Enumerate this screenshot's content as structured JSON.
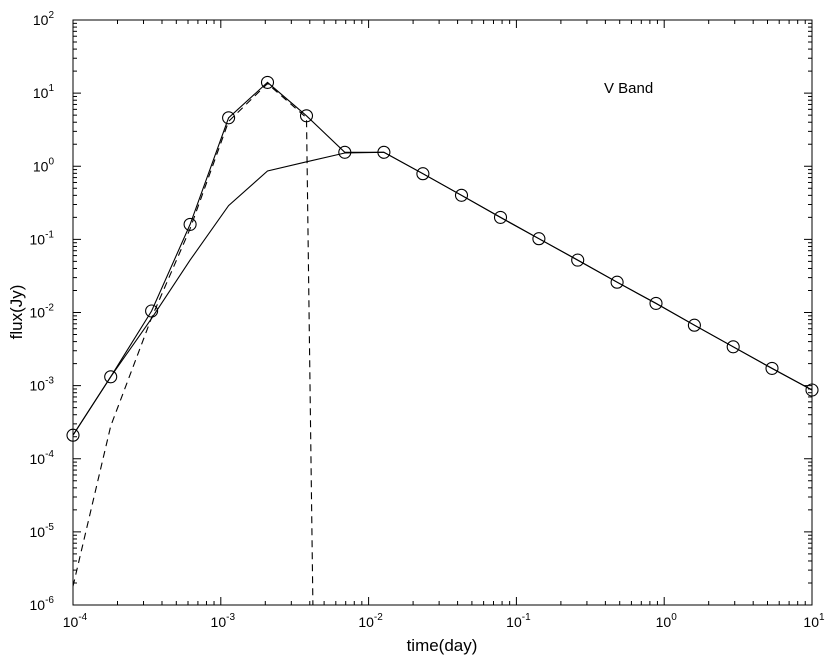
{
  "chart_data": {
    "type": "line",
    "title": "",
    "xlabel": "time(day)",
    "ylabel": "flux(Jy)",
    "xscale": "log",
    "yscale": "log",
    "xlim": [
      0.0001,
      10
    ],
    "ylim": [
      1e-06,
      100
    ],
    "grid": false,
    "annotation": "V  Band",
    "x_ticks": [
      {
        "base": "10",
        "exp": "-4"
      },
      {
        "base": "10",
        "exp": "-3"
      },
      {
        "base": "10",
        "exp": "-2"
      },
      {
        "base": "10",
        "exp": "-1"
      },
      {
        "base": "10",
        "exp": "0"
      },
      {
        "base": "10",
        "exp": "1"
      }
    ],
    "y_ticks": [
      {
        "base": "10",
        "exp": "-6"
      },
      {
        "base": "10",
        "exp": "-5"
      },
      {
        "base": "10",
        "exp": "-4"
      },
      {
        "base": "10",
        "exp": "-3"
      },
      {
        "base": "10",
        "exp": "-2"
      },
      {
        "base": "10",
        "exp": "-1"
      },
      {
        "base": "10",
        "exp": "0"
      },
      {
        "base": "10",
        "exp": "1"
      },
      {
        "base": "10",
        "exp": "2"
      }
    ],
    "series": [
      {
        "style": "solid-circles",
        "x": [
          0.0001,
          0.00018,
          0.00034,
          0.00062,
          0.00113,
          0.00207,
          0.0038,
          0.0069,
          0.0127,
          0.0233,
          0.0425,
          0.078,
          0.142,
          0.26,
          0.48,
          0.88,
          1.6,
          2.93,
          5.36,
          10
        ],
        "y": [
          0.00021,
          0.00132,
          0.0105,
          0.16,
          4.6,
          14,
          4.9,
          1.55,
          1.55,
          0.79,
          0.4,
          0.2,
          0.102,
          0.052,
          0.026,
          0.0133,
          0.0067,
          0.0034,
          0.00172,
          0.00087
        ]
      },
      {
        "style": "solid",
        "x": [
          0.0001,
          0.00018,
          0.00034,
          0.00062,
          0.00113,
          0.00207,
          0.0038,
          0.0069,
          0.0127,
          0.0233,
          0.0425,
          0.078,
          0.142,
          0.26,
          0.48,
          0.88,
          1.6,
          2.93,
          5.36,
          10
        ],
        "y": [
          0.00021,
          0.00132,
          0.0083,
          0.052,
          0.29,
          0.86,
          1.15,
          1.52,
          1.55,
          0.79,
          0.4,
          0.2,
          0.102,
          0.052,
          0.026,
          0.0133,
          0.0067,
          0.0034,
          0.00172,
          0.00087
        ]
      },
      {
        "style": "dashed",
        "x": [
          0.0001,
          0.00018,
          0.00034,
          0.00062,
          0.00113,
          0.00207,
          0.0038,
          0.0042
        ],
        "y": [
          1.8e-06,
          0.00028,
          0.0085,
          0.14,
          4.1,
          13.5,
          4.6,
          1e-06
        ]
      }
    ]
  }
}
